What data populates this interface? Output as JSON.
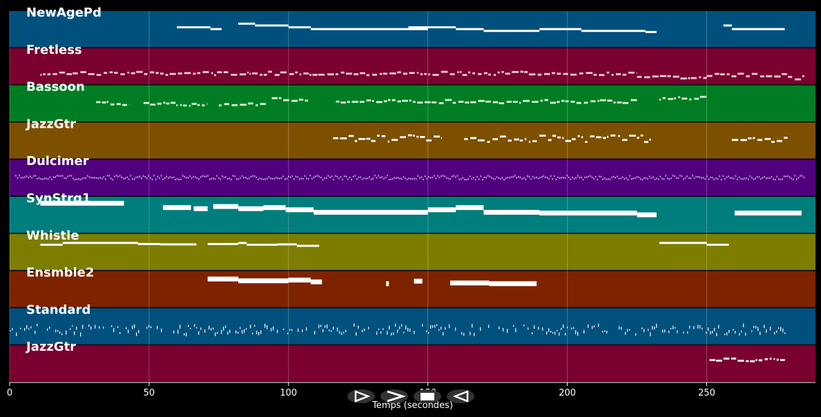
{
  "chart_data": {
    "type": "piano-roll",
    "title": "",
    "xlabel": "Temps (secondes)",
    "ylabel": "",
    "xlim": [
      0,
      289
    ],
    "xticks": [
      0,
      50,
      100,
      150,
      200,
      250
    ],
    "grid": true,
    "tracks": [
      {
        "name": "NewAgePd",
        "color": "#00507d",
        "note": "#ffffff",
        "mode": "legato",
        "segments": [
          [
            60,
            72,
            0.45
          ],
          [
            72,
            76,
            0.5
          ],
          [
            82,
            88,
            0.35
          ],
          [
            88,
            100,
            0.4
          ],
          [
            100,
            108,
            0.45
          ],
          [
            108,
            150,
            0.5
          ],
          [
            143,
            160,
            0.45
          ],
          [
            160,
            170,
            0.5
          ],
          [
            170,
            190,
            0.55
          ],
          [
            190,
            205,
            0.5
          ],
          [
            205,
            228,
            0.55
          ],
          [
            228,
            232,
            0.58
          ],
          [
            256,
            259,
            0.4
          ],
          [
            259,
            262,
            0.5
          ],
          [
            262,
            278,
            0.5
          ]
        ]
      },
      {
        "name": "Fretless",
        "color": "#7a0030",
        "note": "#f0c8d8",
        "mode": "dashed",
        "segments": [
          [
            11,
            225,
            0.7
          ],
          [
            225,
            250,
            0.82
          ],
          [
            250,
            280,
            0.75
          ],
          [
            280,
            285,
            0.82
          ]
        ]
      },
      {
        "name": "Bassoon",
        "color": "#007d23",
        "note": "#d8f5d8",
        "mode": "dashed",
        "segments": [
          [
            31,
            43,
            0.5
          ],
          [
            48,
            71,
            0.52
          ],
          [
            75,
            92,
            0.52
          ],
          [
            94,
            107,
            0.4
          ],
          [
            117,
            225,
            0.45
          ],
          [
            233,
            250,
            0.35
          ]
        ]
      },
      {
        "name": "JazzGtr",
        "color": "#7d5000",
        "note": "#ffffff",
        "mode": "dashed2",
        "segments": [
          [
            116,
            155,
            0.45
          ],
          [
            163,
            230,
            0.45
          ],
          [
            259,
            279,
            0.45
          ]
        ]
      },
      {
        "name": "Dulcimer",
        "color": "#50007d",
        "note": "#c8a0e0",
        "mode": "dense",
        "segments": [
          [
            2,
            285,
            0.5
          ]
        ]
      },
      {
        "name": "SynStrg1",
        "color": "#007d7d",
        "note": "#ffffff",
        "mode": "blocks",
        "segments": [
          [
            11,
            41,
            0.18
          ],
          [
            55,
            65,
            0.3
          ],
          [
            66,
            71,
            0.33
          ],
          [
            73,
            82,
            0.27
          ],
          [
            82,
            91,
            0.33
          ],
          [
            91,
            99,
            0.3
          ],
          [
            99,
            109,
            0.36
          ],
          [
            109,
            150,
            0.43
          ],
          [
            150,
            160,
            0.36
          ],
          [
            160,
            170,
            0.3
          ],
          [
            170,
            190,
            0.43
          ],
          [
            190,
            225,
            0.45
          ],
          [
            225,
            232,
            0.5
          ],
          [
            260,
            284,
            0.45
          ]
        ]
      },
      {
        "name": "Whistle",
        "color": "#7d7d00",
        "note": "#ffffff",
        "mode": "legato",
        "segments": [
          [
            11,
            19,
            0.3
          ],
          [
            19,
            46,
            0.25
          ],
          [
            46,
            54,
            0.28
          ],
          [
            54,
            67,
            0.29
          ],
          [
            71,
            82,
            0.28
          ],
          [
            82,
            85,
            0.25
          ],
          [
            85,
            96,
            0.3
          ],
          [
            96,
            103,
            0.29
          ],
          [
            103,
            111,
            0.33
          ],
          [
            233,
            250,
            0.25
          ],
          [
            250,
            258,
            0.3
          ]
        ]
      },
      {
        "name": "Ensmble2",
        "color": "#7d2300",
        "note": "#ffffff",
        "mode": "blocks",
        "segments": [
          [
            71,
            82,
            0.22
          ],
          [
            82,
            100,
            0.27
          ],
          [
            100,
            108,
            0.25
          ],
          [
            108,
            112,
            0.3
          ],
          [
            135,
            136,
            0.35
          ],
          [
            145,
            148,
            0.28
          ],
          [
            158,
            172,
            0.33
          ],
          [
            172,
            189,
            0.35
          ]
        ]
      },
      {
        "name": "Standard",
        "color": "#00507d",
        "note": "#d8e8f0",
        "mode": "drums",
        "segments": [
          [
            0,
            278,
            0.6
          ]
        ]
      },
      {
        "name": "JazzGtr",
        "color": "#7a0030",
        "note": "#ffffff",
        "mode": "dashed",
        "segments": [
          [
            251,
            278,
            0.4
          ]
        ]
      }
    ]
  },
  "controls": [
    {
      "name": "play-button",
      "icon": "play-icon"
    },
    {
      "name": "forward-button",
      "icon": "forward-icon"
    },
    {
      "name": "stop-button",
      "icon": "stop-icon"
    },
    {
      "name": "rewind-button",
      "icon": "rewind-icon"
    }
  ]
}
